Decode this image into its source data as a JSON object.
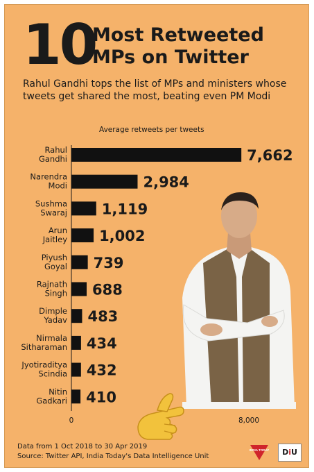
{
  "header": {
    "big_number": "10",
    "title_line1": "Most Retweeted",
    "title_line2": "MPs on Twitter",
    "subtitle": "Rahul Gandhi tops the list of MPs and ministers whose tweets get shared the most, beating even PM Modi"
  },
  "chart_data": {
    "type": "bar",
    "orientation": "horizontal",
    "title": "Average retweets per tweets",
    "categories": [
      [
        "Rahul",
        "Gandhi"
      ],
      [
        "Narendra",
        "Modi"
      ],
      [
        "Sushma",
        "Swaraj"
      ],
      [
        "Arun",
        "Jaitley"
      ],
      [
        "Piyush",
        "Goyal"
      ],
      [
        "Rajnath",
        "Singh"
      ],
      [
        "Dimple",
        "Yadav"
      ],
      [
        "Nirmala",
        "Sitharaman"
      ],
      [
        "Jyotiraditya",
        "Scindia"
      ],
      [
        "Nitin",
        "Gadkari"
      ]
    ],
    "values": [
      7662,
      2984,
      1119,
      1002,
      739,
      688,
      483,
      434,
      432,
      410
    ],
    "value_labels": [
      "7,662",
      "2,984",
      "1,119",
      "1,002",
      "739",
      "688",
      "483",
      "434",
      "432",
      "410"
    ],
    "xlim": [
      0,
      8000
    ],
    "x_tick_labels": [
      "0",
      "8,000"
    ],
    "bar_color": "#111111",
    "grid": false
  },
  "footer": {
    "line1": "Data from 1 Oct 2018 to 30 Apr 2019",
    "line2": "Source: Twitter API, India Today's Data Intelligence Unit",
    "logo_left_text": "INDIA TODAY",
    "logo_right_prefix": "D",
    "logo_right_accent": "i",
    "logo_right_suffix": "U"
  },
  "colors": {
    "background": "#f5b26a",
    "text": "#1a1a1a",
    "accent_red": "#d0242b"
  }
}
